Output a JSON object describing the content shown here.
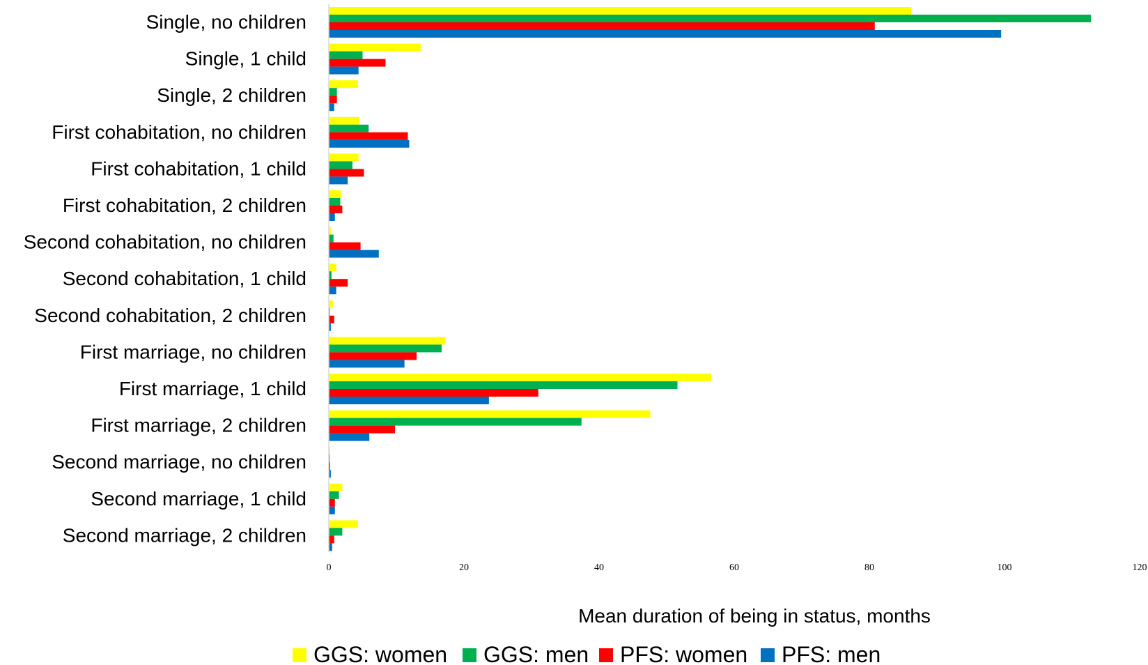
{
  "chart_data": {
    "type": "bar",
    "orientation": "horizontal",
    "title": "",
    "xlabel": "Mean duration of being in status, months",
    "ylabel": "",
    "xlim": [
      0,
      120
    ],
    "x_ticks": [
      0,
      20,
      40,
      60,
      80,
      100,
      120
    ],
    "grid": false,
    "legend_position": "bottom",
    "categories": [
      "Single, no children",
      "Single, 1 child",
      "Single, 2 children",
      "First cohabitation, no children",
      "First cohabitation, 1 child",
      "First cohabitation, 2 children",
      "Second cohabitation, no children",
      "Second cohabitation, 1 child",
      "Second cohabitation, 2 children",
      "First marriage, no children",
      "First marriage, 1 child",
      "First marriage, 2 children",
      "Second marriage, no children",
      "Second marriage, 1 child",
      "Second marriage, 2 children"
    ],
    "series": [
      {
        "name": "GGS: women",
        "color": "#FFFF00",
        "values": [
          86.2,
          13.6,
          4.3,
          4.5,
          4.4,
          1.8,
          0.3,
          1.1,
          0.6,
          17.2,
          56.6,
          47.6,
          0.2,
          2.0,
          4.3
        ]
      },
      {
        "name": "GGS: men",
        "color": "#00B050",
        "values": [
          112.8,
          5.0,
          1.2,
          5.9,
          3.5,
          1.7,
          0.7,
          0.4,
          0.1,
          16.7,
          51.6,
          37.4,
          0.1,
          1.5,
          2.0
        ]
      },
      {
        "name": "PFS: women",
        "color": "#FF0000",
        "values": [
          80.8,
          8.4,
          1.2,
          11.7,
          5.2,
          2.0,
          4.7,
          2.8,
          0.8,
          13.0,
          31.0,
          9.8,
          0.2,
          0.9,
          0.8
        ]
      },
      {
        "name": "PFS: men",
        "color": "#0070C0",
        "values": [
          99.5,
          4.4,
          0.8,
          11.9,
          2.8,
          0.9,
          7.4,
          1.1,
          0.3,
          11.2,
          23.7,
          6.0,
          0.3,
          0.9,
          0.5
        ]
      }
    ]
  }
}
